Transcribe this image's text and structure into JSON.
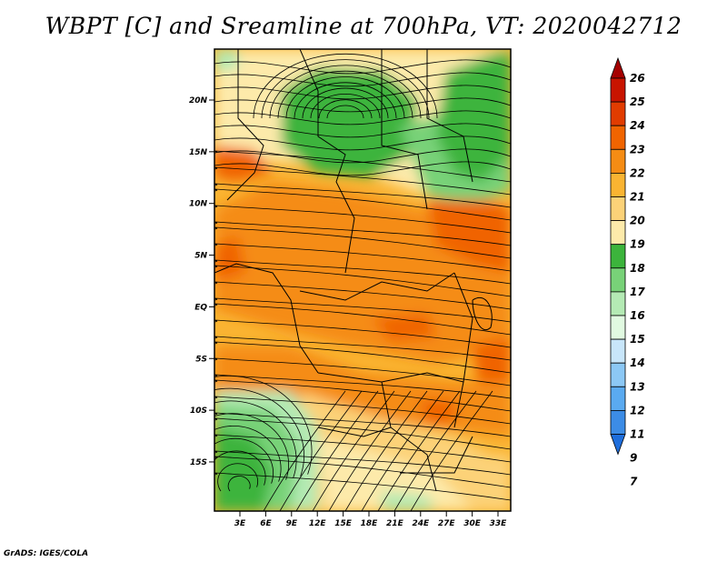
{
  "title": "WBPT [C] and Sreamline at 700hPa, VT: 2020042712",
  "credit": "GrADS: IGES/COLA",
  "lat_labels": [
    "20N",
    "15N",
    "10N",
    "5N",
    "EQ",
    "5S",
    "10S",
    "15S"
  ],
  "lon_labels": [
    "3E",
    "6E",
    "9E",
    "12E",
    "15E",
    "18E",
    "21E",
    "24E",
    "27E",
    "30E",
    "33E"
  ],
  "colorbar": {
    "labels": [
      "26",
      "25",
      "24",
      "23",
      "22",
      "21",
      "20",
      "19",
      "18",
      "17",
      "16",
      "15",
      "14",
      "13",
      "12",
      "11",
      "9",
      "7"
    ],
    "colors": [
      "#a50000",
      "#c81400",
      "#e13c00",
      "#f06400",
      "#f58c14",
      "#fab432",
      "#fcd278",
      "#fdeaaa",
      "#3cb43c",
      "#78d278",
      "#b4eab4",
      "#e1fae1",
      "#c8e6fa",
      "#8cc8f5",
      "#5aaaf0",
      "#3c8ce6",
      "#1e6edc"
    ]
  },
  "field_colors": {
    "green_dark": "#3cb43c",
    "green_mid": "#78d278",
    "green_light": "#b4eab4",
    "yellow_light": "#fdeaaa",
    "yellow": "#fcd278",
    "orange_light": "#fab432",
    "orange": "#f58c14",
    "orange_dark": "#f06400"
  }
}
